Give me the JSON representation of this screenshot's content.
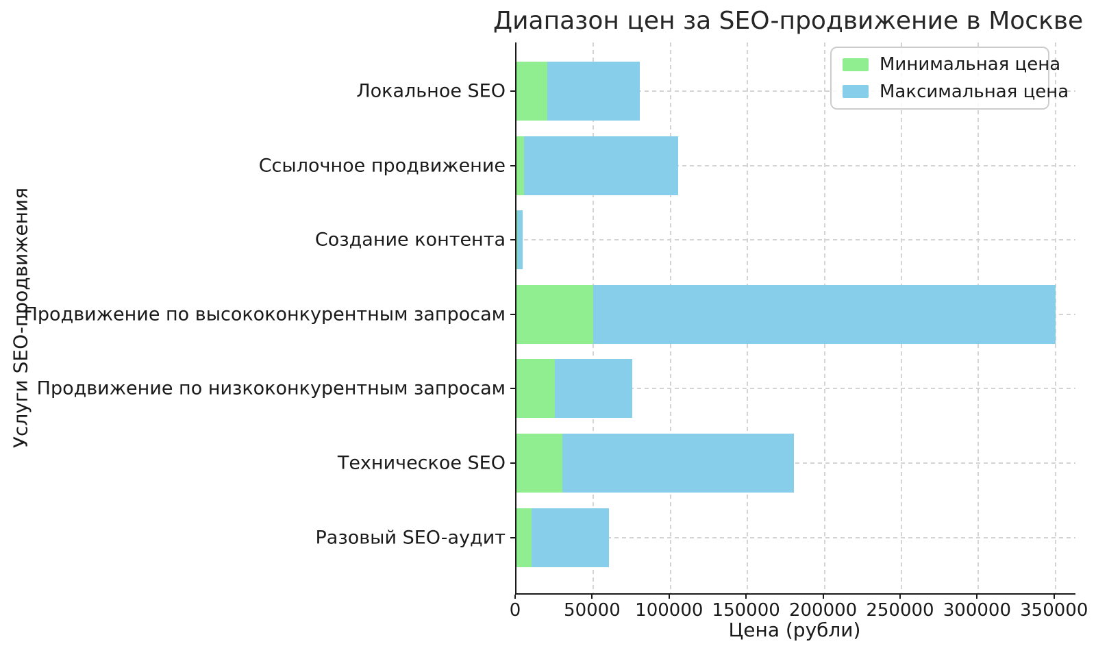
{
  "chart_data": {
    "type": "bar",
    "orientation": "horizontal",
    "title": "Диапазон цен за SEO-продвижение в Москве",
    "xlabel": "Цена (рубли)",
    "ylabel": "Услуги SEO-продвижения",
    "categories": [
      "Локальное SEO",
      "Ссылочное продвижение",
      "Создание контента",
      "Продвижение по высококонкурентным запросам",
      "Продвижение по низкоконкурентным запросам",
      "Техническое SEO",
      "Разовый SEO-аудит"
    ],
    "series": [
      {
        "name": "Минимальная цена",
        "color": "#90EE90",
        "values": [
          20000,
          5000,
          500,
          50000,
          25000,
          30000,
          10000
        ]
      },
      {
        "name": "Максимальная цена",
        "color": "#87CEEB",
        "values": [
          80000,
          105000,
          4000,
          350000,
          75000,
          180000,
          60000
        ]
      }
    ],
    "bar_style": "range: green segment spans 0..min, blue segment spans min..max",
    "xticks": [
      0,
      50000,
      100000,
      150000,
      200000,
      250000,
      300000,
      350000
    ],
    "xlim": [
      0,
      363000
    ],
    "grid": "dashed light-gray, vertical at x ticks and horizontal at category centers",
    "legend_position": "upper right",
    "colors": {
      "min_price": "#90EE90",
      "max_price": "#87CEEB",
      "grid": "#d4d4d4",
      "axis": "#1a1a1a",
      "background": "#ffffff"
    }
  }
}
